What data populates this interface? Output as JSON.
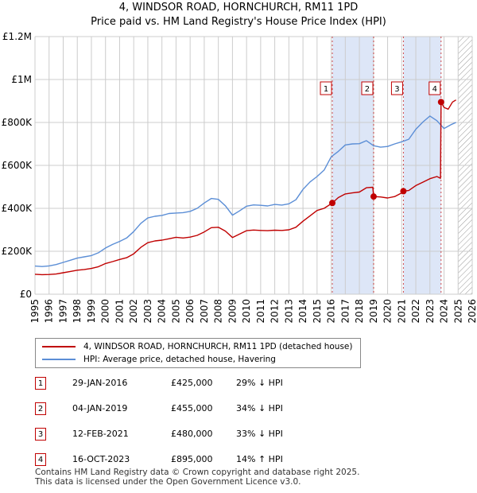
{
  "title": {
    "line1": "4, WINDSOR ROAD, HORNCHURCH, RM11 1PD",
    "line2": "Price paid vs. HM Land Registry's House Price Index (HPI)"
  },
  "colors": {
    "property": "#c00000",
    "hpi": "#5b8ed6",
    "shade": "#dde6f7",
    "grid": "#cccccc",
    "hatch": "#999999"
  },
  "chart_data": {
    "type": "line",
    "title": "Price paid vs. HM Land Registry's House Price Index (HPI)",
    "xlabel": "",
    "ylabel": "",
    "xlim": [
      1995,
      2026
    ],
    "ylim": [
      0,
      1200000
    ],
    "x_ticks": [
      "1995",
      "1996",
      "1997",
      "1998",
      "1999",
      "2000",
      "2001",
      "2002",
      "2003",
      "2004",
      "2005",
      "2006",
      "2007",
      "2008",
      "2009",
      "2010",
      "2011",
      "2012",
      "2013",
      "2014",
      "2015",
      "2016",
      "2017",
      "2018",
      "2019",
      "2020",
      "2021",
      "2022",
      "2023",
      "2024",
      "2025",
      "2026"
    ],
    "y_ticks": [
      {
        "value": 0,
        "label": "£0"
      },
      {
        "value": 200000,
        "label": "£200K"
      },
      {
        "value": 400000,
        "label": "£400K"
      },
      {
        "value": 600000,
        "label": "£600K"
      },
      {
        "value": 800000,
        "label": "£800K"
      },
      {
        "value": 1000000,
        "label": "£1M"
      },
      {
        "value": 1200000,
        "label": "£1.2M"
      }
    ],
    "shaded_periods": [
      [
        2016.08,
        2019.01
      ],
      [
        2021.12,
        2023.79
      ]
    ],
    "future_from": 2025.0,
    "series": [
      {
        "name": "4, WINDSOR ROAD, HORNCHURCH, RM11 1PD (detached house)",
        "color": "#c00000",
        "x": [
          1995.0,
          1995.5,
          1996.0,
          1996.5,
          1997.0,
          1997.5,
          1998.0,
          1998.5,
          1999.0,
          1999.5,
          2000.0,
          2000.5,
          2001.0,
          2001.5,
          2002.0,
          2002.5,
          2003.0,
          2003.5,
          2004.0,
          2004.5,
          2005.0,
          2005.5,
          2006.0,
          2006.5,
          2007.0,
          2007.5,
          2008.0,
          2008.5,
          2009.0,
          2009.5,
          2010.0,
          2010.5,
          2011.0,
          2011.5,
          2012.0,
          2012.5,
          2013.0,
          2013.5,
          2014.0,
          2014.5,
          2015.0,
          2015.5,
          2016.08,
          2016.5,
          2017.0,
          2017.5,
          2018.0,
          2018.5,
          2018.95,
          2019.01,
          2019.5,
          2020.0,
          2020.5,
          2021.0,
          2021.12,
          2021.5,
          2022.0,
          2022.5,
          2023.0,
          2023.5,
          2023.75,
          2023.79,
          2024.0,
          2024.3,
          2024.6,
          2024.85
        ],
        "y": [
          93000,
          91000,
          92000,
          94000,
          100000,
          106000,
          112000,
          115000,
          120000,
          128000,
          143000,
          152000,
          162000,
          170000,
          188000,
          218000,
          240000,
          248000,
          252000,
          258000,
          265000,
          262000,
          266000,
          274000,
          290000,
          310000,
          312000,
          294000,
          264000,
          280000,
          296000,
          299000,
          297000,
          296000,
          298000,
          297000,
          300000,
          312000,
          340000,
          365000,
          390000,
          400000,
          425000,
          450000,
          467000,
          472000,
          476000,
          496000,
          498000,
          455000,
          453000,
          448000,
          455000,
          472000,
          480000,
          483000,
          506000,
          522000,
          538000,
          548000,
          540000,
          895000,
          870000,
          862000,
          895000,
          905000
        ]
      },
      {
        "name": "HPI: Average price, detached house, Havering",
        "color": "#5b8ed6",
        "x": [
          1995.0,
          1995.5,
          1996.0,
          1996.5,
          1997.0,
          1997.5,
          1998.0,
          1998.5,
          1999.0,
          1999.5,
          2000.0,
          2000.5,
          2001.0,
          2001.5,
          2002.0,
          2002.5,
          2003.0,
          2003.5,
          2004.0,
          2004.5,
          2005.0,
          2005.5,
          2006.0,
          2006.5,
          2007.0,
          2007.5,
          2008.0,
          2008.5,
          2009.0,
          2009.5,
          2010.0,
          2010.5,
          2011.0,
          2011.5,
          2012.0,
          2012.5,
          2013.0,
          2013.5,
          2014.0,
          2014.5,
          2015.0,
          2015.5,
          2016.0,
          2016.5,
          2017.0,
          2017.5,
          2018.0,
          2018.5,
          2019.0,
          2019.5,
          2020.0,
          2020.5,
          2021.0,
          2021.5,
          2022.0,
          2022.5,
          2023.0,
          2023.5,
          2024.0,
          2024.5,
          2024.85
        ],
        "y": [
          131000,
          129000,
          132000,
          138000,
          148000,
          158000,
          168000,
          174000,
          180000,
          193000,
          215000,
          232000,
          246000,
          262000,
          292000,
          330000,
          355000,
          363000,
          367000,
          376000,
          378000,
          380000,
          386000,
          400000,
          425000,
          446000,
          442000,
          412000,
          368000,
          388000,
          410000,
          416000,
          414000,
          411000,
          418000,
          415000,
          421000,
          440000,
          488000,
          523000,
          548000,
          578000,
          640000,
          665000,
          695000,
          700000,
          701000,
          715000,
          692000,
          685000,
          688000,
          700000,
          710000,
          722000,
          768000,
          802000,
          830000,
          808000,
          772000,
          790000,
          800000
        ]
      }
    ],
    "sales": [
      {
        "num": "1",
        "x": 2016.08,
        "y": 425000
      },
      {
        "num": "2",
        "x": 2019.01,
        "y": 455000
      },
      {
        "num": "3",
        "x": 2021.12,
        "y": 480000
      },
      {
        "num": "4",
        "x": 2023.79,
        "y": 895000
      }
    ]
  },
  "legend": {
    "property_label": "4, WINDSOR ROAD, HORNCHURCH, RM11 1PD (detached house)",
    "hpi_label": "HPI: Average price, detached house, Havering"
  },
  "sales_table": [
    {
      "num": "1",
      "date": "29-JAN-2016",
      "price": "£425,000",
      "hpi": "29% ↓ HPI"
    },
    {
      "num": "2",
      "date": "04-JAN-2019",
      "price": "£455,000",
      "hpi": "34% ↓ HPI"
    },
    {
      "num": "3",
      "date": "12-FEB-2021",
      "price": "£480,000",
      "hpi": "33% ↓ HPI"
    },
    {
      "num": "4",
      "date": "16-OCT-2023",
      "price": "£895,000",
      "hpi": "14% ↑ HPI"
    }
  ],
  "footer": {
    "line1": "Contains HM Land Registry data © Crown copyright and database right 2025.",
    "line2": "This data is licensed under the Open Government Licence v3.0."
  }
}
